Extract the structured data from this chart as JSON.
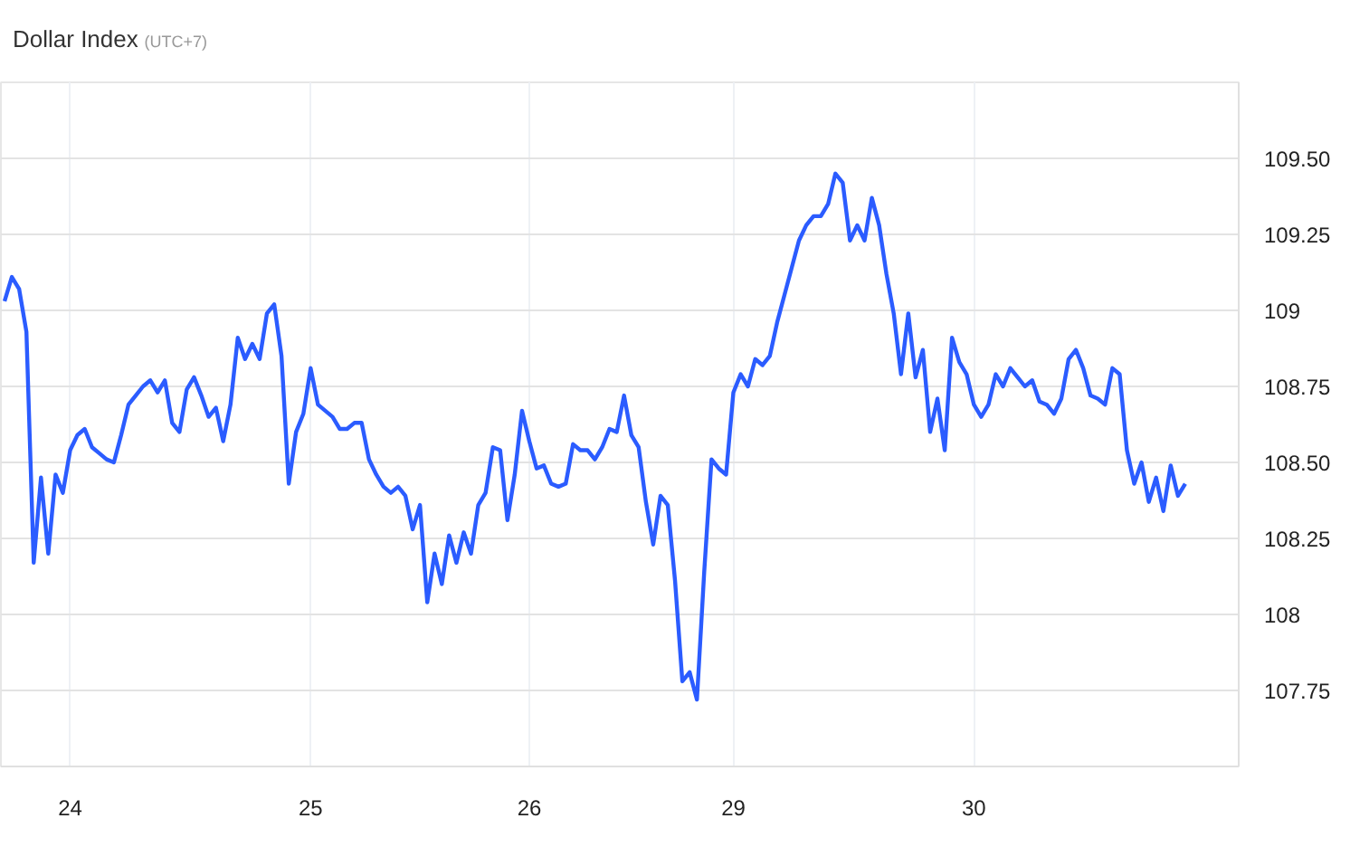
{
  "chart_data": {
    "type": "line",
    "title": "Dollar Index",
    "subtitle": "(UTC+7)",
    "categories": [
      null,
      null,
      null,
      null,
      null,
      null,
      null,
      null,
      null,
      "24",
      null,
      null,
      null,
      null,
      null,
      null,
      null,
      null,
      null,
      null,
      null,
      null,
      null,
      null,
      null,
      null,
      null,
      null,
      null,
      null,
      null,
      null,
      null,
      null,
      null,
      null,
      null,
      null,
      null,
      null,
      null,
      null,
      "25",
      null,
      null,
      null,
      null,
      null,
      null,
      null,
      null,
      null,
      null,
      null,
      null,
      null,
      null,
      null,
      null,
      null,
      null,
      null,
      null,
      null,
      null,
      null,
      null,
      null,
      null,
      null,
      null,
      null,
      "26",
      null,
      null,
      null,
      null,
      null,
      null,
      null,
      null,
      null,
      null,
      null,
      null,
      null,
      null,
      null,
      null,
      null,
      null,
      null,
      null,
      null,
      null,
      null,
      null,
      null,
      null,
      null,
      "29",
      null,
      null,
      null,
      null,
      null,
      null,
      null,
      null,
      null,
      null,
      null,
      null,
      null,
      null,
      null,
      null,
      null,
      null,
      null,
      null,
      null,
      null,
      null,
      null,
      null,
      null,
      null,
      null,
      null,
      null,
      null,
      null,
      "30",
      null,
      null,
      null,
      null,
      null,
      null,
      null,
      null,
      null,
      null,
      null,
      null,
      null,
      null,
      null,
      null,
      null,
      null,
      null,
      null,
      null,
      null,
      null,
      null,
      null,
      null,
      null,
      null,
      null
    ],
    "series": [
      {
        "color": "#2b5cff",
        "values": [
          109.03,
          109.11,
          109.07,
          108.93,
          108.17,
          108.45,
          108.2,
          108.46,
          108.4,
          108.54,
          108.59,
          108.61,
          108.55,
          108.53,
          108.51,
          108.5,
          108.59,
          108.69,
          108.72,
          108.75,
          108.77,
          108.73,
          108.77,
          108.63,
          108.6,
          108.74,
          108.78,
          108.72,
          108.65,
          108.68,
          108.57,
          108.69,
          108.91,
          108.84,
          108.89,
          108.84,
          108.99,
          109.02,
          108.85,
          108.43,
          108.6,
          108.66,
          108.81,
          108.69,
          108.67,
          108.65,
          108.61,
          108.61,
          108.63,
          108.63,
          108.51,
          108.46,
          108.42,
          108.4,
          108.42,
          108.39,
          108.28,
          108.36,
          108.04,
          108.2,
          108.1,
          108.26,
          108.17,
          108.27,
          108.2,
          108.36,
          108.4,
          108.55,
          108.54,
          108.31,
          108.46,
          108.67,
          108.57,
          108.48,
          108.49,
          108.43,
          108.42,
          108.43,
          108.56,
          108.54,
          108.54,
          108.51,
          108.55,
          108.61,
          108.6,
          108.72,
          108.59,
          108.55,
          108.37,
          108.23,
          108.39,
          108.36,
          108.11,
          107.78,
          107.81,
          107.72,
          108.14,
          108.51,
          108.48,
          108.46,
          108.73,
          108.79,
          108.75,
          108.84,
          108.82,
          108.85,
          108.96,
          109.05,
          109.14,
          109.23,
          109.28,
          109.31,
          109.31,
          109.35,
          109.45,
          109.42,
          109.23,
          109.28,
          109.23,
          109.37,
          109.28,
          109.12,
          108.99,
          108.79,
          108.99,
          108.78,
          108.87,
          108.6,
          108.71,
          108.54,
          108.91,
          108.83,
          108.79,
          108.69,
          108.65,
          108.69,
          108.79,
          108.75,
          108.81,
          108.78,
          108.75,
          108.77,
          108.7,
          108.69,
          108.66,
          108.71,
          108.84,
          108.87,
          108.81,
          108.72,
          108.71,
          108.69,
          108.81,
          108.79,
          108.54,
          108.43,
          108.5,
          108.37,
          108.45,
          108.34,
          108.49,
          108.39,
          108.43
        ]
      }
    ],
    "ylim": [
      107.5,
      109.75
    ],
    "yticks": [
      {
        "value": 107.75,
        "label": "107.75"
      },
      {
        "value": 108,
        "label": "108"
      },
      {
        "value": 108.25,
        "label": "108.25"
      },
      {
        "value": 108.5,
        "label": "108.50"
      },
      {
        "value": 108.75,
        "label": "108.75"
      },
      {
        "value": 109,
        "label": "109"
      },
      {
        "value": 109.25,
        "label": "109.25"
      },
      {
        "value": 109.5,
        "label": "109.50"
      }
    ],
    "grid": true,
    "marker": "none",
    "line_style": "solid"
  }
}
